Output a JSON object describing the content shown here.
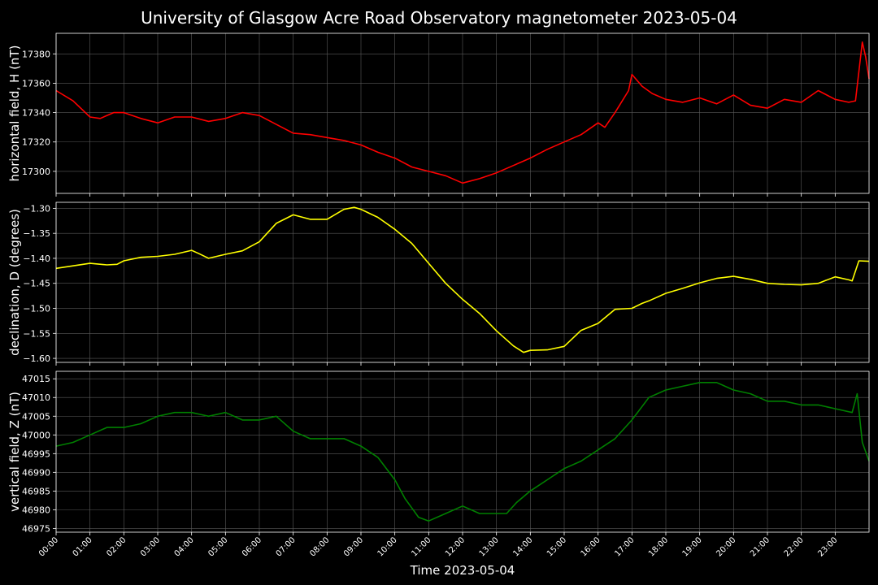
{
  "title": "University of Glasgow Acre Road Observatory magnetometer 2023-05-04",
  "xlabel": "Time 2023-05-04",
  "x_ticks": [
    "00:00",
    "01:00",
    "02:00",
    "03:00",
    "04:00",
    "05:00",
    "06:00",
    "07:00",
    "08:00",
    "09:00",
    "10:00",
    "11:00",
    "12:00",
    "13:00",
    "14:00",
    "15:00",
    "16:00",
    "17:00",
    "18:00",
    "19:00",
    "20:00",
    "21:00",
    "22:00",
    "23:00"
  ],
  "colors": {
    "background": "#000000",
    "grid": "#5a5a5a",
    "axes": "#ffffff",
    "H": "#ff0000",
    "D": "#ffff00",
    "Z": "#008000"
  },
  "chart_data": [
    {
      "type": "line",
      "ylabel": "horizontal field, H (nT)",
      "series_color": "#ff0000",
      "xlim": [
        0,
        24.0
      ],
      "ylim": [
        17285,
        17394
      ],
      "yticks": [
        17300,
        17320,
        17340,
        17360,
        17380
      ],
      "x": [
        0,
        0.5,
        1,
        1.3,
        1.7,
        2,
        2.5,
        3,
        3.5,
        4,
        4.5,
        5,
        5.5,
        6,
        6.5,
        7,
        7.5,
        8,
        8.5,
        9,
        9.5,
        10,
        10.5,
        11,
        11.5,
        12,
        12.5,
        13,
        13.5,
        14,
        14.5,
        15,
        15.5,
        16,
        16.2,
        16.5,
        16.9,
        17.0,
        17.3,
        17.6,
        18,
        18.5,
        19,
        19.5,
        20,
        20.5,
        21,
        21.5,
        22,
        22.5,
        23,
        23.4,
        23.6,
        23.8,
        23.9,
        24.0
      ],
      "y": [
        17355,
        17348,
        17337,
        17336,
        17340,
        17340,
        17336,
        17333,
        17337,
        17337,
        17334,
        17336,
        17340,
        17338,
        17332,
        17326,
        17325,
        17323,
        17321,
        17318,
        17313,
        17309,
        17303,
        17300,
        17297,
        17292,
        17295,
        17299,
        17304,
        17309,
        17315,
        17320,
        17325,
        17333,
        17330,
        17340,
        17355,
        17366,
        17358,
        17353,
        17349,
        17347,
        17350,
        17346,
        17352,
        17345,
        17343,
        17349,
        17347,
        17355,
        17349,
        17347,
        17348,
        17388,
        17378,
        17363
      ]
    },
    {
      "type": "line",
      "ylabel": "declination, D (degrees)",
      "series_color": "#ffff00",
      "xlim": [
        0,
        24.0
      ],
      "ylim": [
        -1.608,
        -1.288
      ],
      "yticks": [
        -1.3,
        -1.35,
        -1.4,
        -1.45,
        -1.5,
        -1.55,
        -1.6
      ],
      "ytick_labels": [
        "−1.30",
        "−1.35",
        "−1.40",
        "−1.45",
        "−1.50",
        "−1.55",
        "−1.60"
      ],
      "x": [
        0,
        0.5,
        1,
        1.5,
        1.8,
        2,
        2.5,
        3,
        3.5,
        4,
        4.2,
        4.5,
        5,
        5.5,
        6,
        6.5,
        7,
        7.5,
        8,
        8.5,
        8.8,
        9,
        9.5,
        10,
        10.5,
        11,
        11.5,
        12,
        12.5,
        13,
        13.5,
        13.8,
        14,
        14.5,
        15,
        15.5,
        16,
        16.5,
        17,
        17.3,
        17.5,
        18,
        18.5,
        19,
        19.5,
        20,
        20.5,
        21,
        21.5,
        22,
        22.5,
        23,
        23.4,
        23.5,
        23.7,
        24.0
      ],
      "y": [
        -1.42,
        -1.415,
        -1.41,
        -1.413,
        -1.412,
        -1.405,
        -1.398,
        -1.396,
        -1.392,
        -1.384,
        -1.39,
        -1.4,
        -1.392,
        -1.385,
        -1.367,
        -1.33,
        -1.313,
        -1.322,
        -1.322,
        -1.302,
        -1.298,
        -1.302,
        -1.318,
        -1.342,
        -1.37,
        -1.41,
        -1.45,
        -1.482,
        -1.51,
        -1.545,
        -1.575,
        -1.588,
        -1.584,
        -1.583,
        -1.576,
        -1.544,
        -1.53,
        -1.502,
        -1.5,
        -1.49,
        -1.485,
        -1.47,
        -1.46,
        -1.449,
        -1.44,
        -1.436,
        -1.442,
        -1.45,
        -1.452,
        -1.453,
        -1.45,
        -1.437,
        -1.443,
        -1.445,
        -1.405,
        -1.406
      ]
    },
    {
      "type": "line",
      "ylabel": "vertical field, Z (nT)",
      "series_color": "#008000",
      "xlim": [
        0,
        24.0
      ],
      "ylim": [
        46974,
        47017
      ],
      "yticks": [
        46975,
        46980,
        46985,
        46990,
        46995,
        47000,
        47005,
        47010,
        47015
      ],
      "x": [
        0,
        0.5,
        1,
        1.5,
        2,
        2.5,
        3,
        3.5,
        4,
        4.5,
        5,
        5.5,
        6,
        6.5,
        7,
        7.5,
        8,
        8.5,
        9,
        9.5,
        10,
        10.3,
        10.7,
        11,
        11.5,
        12,
        12.5,
        13,
        13.3,
        13.6,
        14,
        14.5,
        15,
        15.5,
        16,
        16.5,
        17,
        17.5,
        18,
        18.5,
        19,
        19.5,
        20,
        20.5,
        21,
        21.5,
        22,
        22.5,
        23,
        23.5,
        23.65,
        23.8,
        24.0
      ],
      "y": [
        46997,
        46998,
        47000,
        47002,
        47002,
        47003,
        47005,
        47006,
        47006,
        47005,
        47006,
        47004,
        47004,
        47005,
        47001,
        46999,
        46999,
        46999,
        46997,
        46994,
        46988,
        46983,
        46978,
        46977,
        46979,
        46981,
        46979,
        46979,
        46979,
        46982,
        46985,
        46988,
        46991,
        46993,
        46996,
        46999,
        47004,
        47010,
        47012,
        47013,
        47014,
        47014,
        47012,
        47011,
        47009,
        47009,
        47008,
        47008,
        47007,
        47006,
        47011,
        46998,
        46993
      ]
    }
  ]
}
